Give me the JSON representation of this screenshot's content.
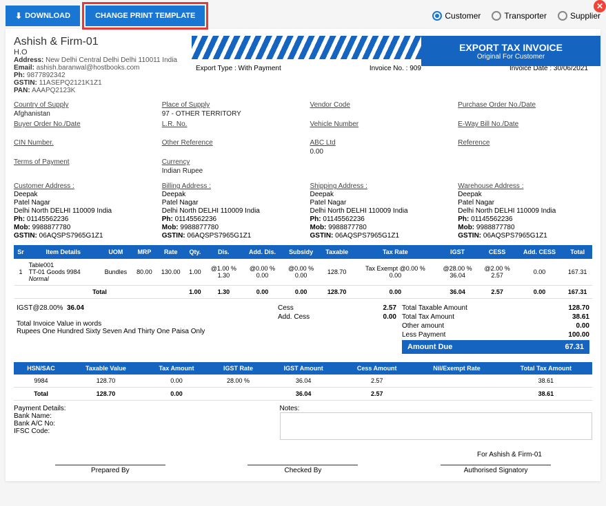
{
  "toolbar": {
    "download": "DOWNLOAD",
    "change_template": "CHANGE PRINT TEMPLATE"
  },
  "radios": {
    "customer": "Customer",
    "transporter": "Transporter",
    "supplier": "Supplier"
  },
  "firm": {
    "name": "Ashish & Firm-01",
    "ho": "H.O",
    "address_lbl": "Address:",
    "address": "New Delhi Central Delhi Delhi 110011 India",
    "email_lbl": "Email:",
    "email": "ashish.baranwal@hostbooks.com",
    "ph_lbl": "Ph:",
    "ph": "9877892342",
    "gstin_lbl": "GSTIN:",
    "gstin": "11ASEPQ2121K1Z1",
    "pan_lbl": "PAN:",
    "pan": "AAAPQ2123K"
  },
  "title": {
    "t1": "EXPORT TAX INVOICE",
    "t2": "Original For Customer"
  },
  "meta": {
    "export_type_lbl": "Export Type : With Payment",
    "invoice_no_lbl": "Invoice No. :",
    "invoice_no": "909",
    "invoice_date_lbl": "Invoice Date :",
    "invoice_date": "30/06/2021"
  },
  "fields": {
    "country_supply": {
      "lbl": "Country of Supply",
      "val": "Afghanistan"
    },
    "place_supply": {
      "lbl": "Place of Supply",
      "val": "97 - OTHER TERRITORY"
    },
    "vendor_code": {
      "lbl": "Vendor Code",
      "val": ""
    },
    "po_no": {
      "lbl": "Purchase Order No./Date",
      "val": ""
    },
    "buyer_order": {
      "lbl": "Buyer Order No./Date",
      "val": ""
    },
    "lr_no": {
      "lbl": "L.R. No.",
      "val": ""
    },
    "vehicle_no": {
      "lbl": "Vehicle Number",
      "val": ""
    },
    "eway": {
      "lbl": "E-Way Bill No./Date",
      "val": ""
    },
    "cin": {
      "lbl": "CIN Number.",
      "val": ""
    },
    "other_ref": {
      "lbl": "Other Reference",
      "val": ""
    },
    "abc": {
      "lbl": "ABC Ltd",
      "val": "0.00"
    },
    "reference": {
      "lbl": "Reference",
      "val": ""
    },
    "terms": {
      "lbl": "Terms of Payment",
      "val": ""
    },
    "currency": {
      "lbl": "Currency",
      "val": "Indian Rupee"
    }
  },
  "addr": {
    "customer": {
      "lbl": "Customer Address :",
      "name": "Deepak",
      "l1": "Patel Nagar",
      "l2": "Delhi North DELHI 110009 India",
      "ph_lbl": "Ph:",
      "ph": "01145562236",
      "mob_lbl": "Mob:",
      "mob": "9988877780",
      "gstin_lbl": "GSTIN:",
      "gstin": "06AQSPS7965G1Z1"
    },
    "billing": {
      "lbl": "Billing Address :",
      "name": "Deepak",
      "l1": "Patel Nagar",
      "l2": "Delhi North DELHI 110009 India",
      "ph_lbl": "Ph:",
      "ph": "01145562236",
      "mob_lbl": "Mob:",
      "mob": "9988877780",
      "gstin_lbl": "GSTIN:",
      "gstin": "06AQSPS7965G1Z1"
    },
    "shipping": {
      "lbl": "Shipping Address :",
      "name": "Deepak",
      "l1": "Patel Nagar",
      "l2": "Delhi North DELHI 110009 India",
      "ph_lbl": "Ph:",
      "ph": "01145562236",
      "mob_lbl": "Mob:",
      "mob": "9988877780",
      "gstin_lbl": "GSTIN:",
      "gstin": "06AQSPS7965G1Z1"
    },
    "warehouse": {
      "lbl": "Warehouse Address :",
      "name": "Deepak",
      "l1": "Patel Nagar",
      "l2": "Delhi North DELHI 110009 India",
      "ph_lbl": "Ph:",
      "ph": "01145562236",
      "mob_lbl": "Mob:",
      "mob": "9988877780",
      "gstin_lbl": "GSTIN:",
      "gstin": "06AQSPS7965G1Z1"
    }
  },
  "items": {
    "headers": [
      "Sr",
      "Item Details",
      "UOM",
      "MRP",
      "Rate",
      "Qty.",
      "Dis.",
      "Add. Dis.",
      "Subsidy",
      "Taxable",
      "Tax Rate",
      "IGST",
      "CESS",
      "Add. CESS",
      "Total"
    ],
    "row": {
      "sr": "1",
      "name": "Table001",
      "code": "TT-01 Goods 9984",
      "normal": "Normal",
      "uom": "Bundles",
      "mrp": "80.00",
      "rate": "130.00",
      "qty": "1.00",
      "dis1": "@1.00 %",
      "dis2": "1.30",
      "adis1": "@0.00 %",
      "adis2": "0.00",
      "sub1": "@0.00 %",
      "sub2": "0.00",
      "taxable": "128.70",
      "taxrate1": "Tax Exempt @0.00 %",
      "taxrate2": "0.00",
      "igst1": "@28.00 %",
      "igst2": "36.04",
      "cess1": "@2.00 %",
      "cess2": "2.57",
      "addcess": "0.00",
      "total": "167.31"
    },
    "totals": {
      "label": "Total",
      "qty": "1.00",
      "dis": "1.30",
      "adis": "0.00",
      "sub": "0.00",
      "taxable": "128.70",
      "taxrate": "0.00",
      "igst": "36.04",
      "cess": "2.57",
      "addcess": "0.00",
      "total": "167.31"
    }
  },
  "summary": {
    "igst_line": "IGST@28.00%",
    "igst_val": "36.04",
    "words_lbl": "Total Invoice Value in words",
    "words": "Rupees One Hundred Sixty Seven And Thirty One Paisa Only",
    "cess_lbl": "Cess",
    "cess": "2.57",
    "addcess_lbl": "Add. Cess",
    "addcess": "0.00",
    "total_taxable_lbl": "Total Taxable Amount",
    "total_taxable": "128.70",
    "total_tax_lbl": "Total Tax Amount",
    "total_tax": "38.61",
    "other_lbl": "Other amount",
    "other": "0.00",
    "less_lbl": "Less Payment",
    "less": "100.00",
    "due_lbl": "Amount Due",
    "due": "67.31"
  },
  "hsn": {
    "headers": [
      "HSN/SAC",
      "Taxable Value",
      "Tax Amount",
      "IGST Rate",
      "IGST Amount",
      "Cess Amount",
      "Nil/Exempt Rate",
      "Total Tax Amount"
    ],
    "row": {
      "hsn": "9984",
      "taxable": "128.70",
      "tax": "0.00",
      "igstrate": "28.00 %",
      "igstamt": "36.04",
      "cess": "2.57",
      "nil": "",
      "total": "38.61"
    },
    "totals": {
      "label": "Total",
      "taxable": "128.70",
      "tax": "0.00",
      "igstrate": "",
      "igstamt": "36.04",
      "cess": "2.57",
      "nil": "",
      "total": "38.61"
    }
  },
  "payment": {
    "title": "Payment Details:",
    "bank_name_lbl": "Bank Name:",
    "bank_ac_lbl": "Bank A/C No:",
    "ifsc_lbl": "IFSC Code:"
  },
  "notes_lbl": "Notes:",
  "for_firm": "For Ashish & Firm-01",
  "sign": {
    "prepared": "Prepared By",
    "checked": "Checked By",
    "auth": "Authorised Signatory"
  }
}
